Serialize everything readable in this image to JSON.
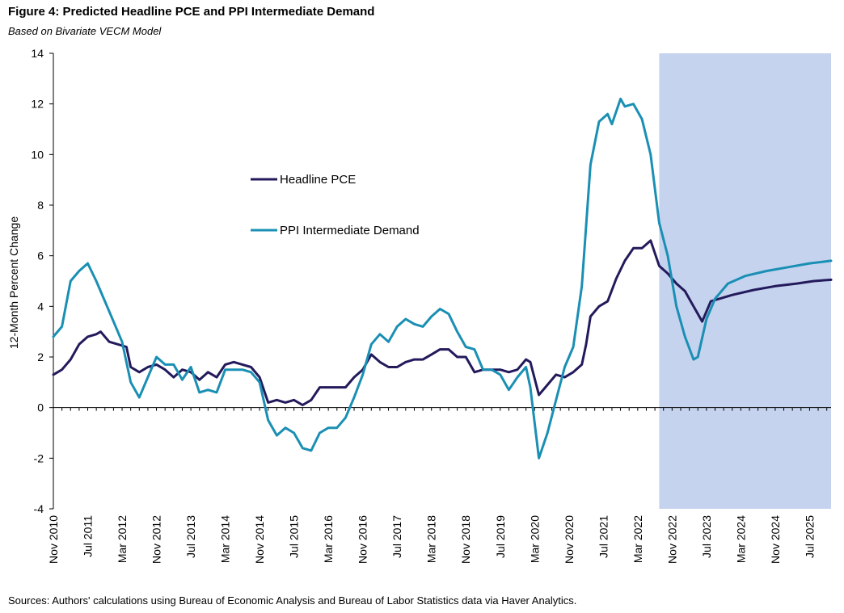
{
  "title": "Figure 4: Predicted Headline PCE and PPI Intermediate Demand",
  "subtitle": "Based on Bivariate VECM Model",
  "source": "Sources: Authors' calculations using Bureau of Economic Analysis and Bureau of Labor Statistics data via Haver Analytics.",
  "chart_data": {
    "type": "line",
    "ylabel": "12-Month Percent Change",
    "ylim": [
      -4,
      14
    ],
    "yticks": [
      -4,
      -2,
      0,
      2,
      4,
      6,
      8,
      10,
      12,
      14
    ],
    "xlim": [
      "2010-11",
      "2025-12"
    ],
    "xticks": [
      {
        "date": "2010-11",
        "label": "Nov 2010"
      },
      {
        "date": "2011-07",
        "label": "Jul 2011"
      },
      {
        "date": "2012-03",
        "label": "Mar 2012"
      },
      {
        "date": "2012-11",
        "label": "Nov 2012"
      },
      {
        "date": "2013-07",
        "label": "Jul 2013"
      },
      {
        "date": "2014-03",
        "label": "Mar 2014"
      },
      {
        "date": "2014-11",
        "label": "Nov 2014"
      },
      {
        "date": "2015-07",
        "label": "Jul 2015"
      },
      {
        "date": "2016-03",
        "label": "Mar 2016"
      },
      {
        "date": "2016-11",
        "label": "Nov 2016"
      },
      {
        "date": "2017-07",
        "label": "Jul 2017"
      },
      {
        "date": "2018-03",
        "label": "Mar 2018"
      },
      {
        "date": "2018-11",
        "label": "Nov 2018"
      },
      {
        "date": "2019-07",
        "label": "Jul 2019"
      },
      {
        "date": "2020-03",
        "label": "Mar 2020"
      },
      {
        "date": "2020-11",
        "label": "Nov 2020"
      },
      {
        "date": "2021-07",
        "label": "Jul 2021"
      },
      {
        "date": "2022-03",
        "label": "Mar 2022"
      },
      {
        "date": "2022-11",
        "label": "Nov 2022"
      },
      {
        "date": "2023-07",
        "label": "Jul 2023"
      },
      {
        "date": "2024-03",
        "label": "Mar 2024"
      },
      {
        "date": "2024-11",
        "label": "Nov 2024"
      },
      {
        "date": "2025-07",
        "label": "Jul 2025"
      }
    ],
    "forecast_shading": {
      "start": "2022-08",
      "end": "2025-12",
      "color": "#c5d3ee"
    },
    "grid": false,
    "legend_position": "inside-upper-left",
    "series": [
      {
        "name": "Headline PCE",
        "color": "#231a5c",
        "points": [
          [
            "2010-11",
            1.3
          ],
          [
            "2011-01",
            1.5
          ],
          [
            "2011-03",
            1.9
          ],
          [
            "2011-05",
            2.5
          ],
          [
            "2011-07",
            2.8
          ],
          [
            "2011-09",
            2.9
          ],
          [
            "2011-10",
            3.0
          ],
          [
            "2011-12",
            2.6
          ],
          [
            "2012-02",
            2.5
          ],
          [
            "2012-04",
            2.4
          ],
          [
            "2012-05",
            1.6
          ],
          [
            "2012-07",
            1.4
          ],
          [
            "2012-09",
            1.6
          ],
          [
            "2012-11",
            1.7
          ],
          [
            "2013-01",
            1.5
          ],
          [
            "2013-03",
            1.2
          ],
          [
            "2013-05",
            1.5
          ],
          [
            "2013-07",
            1.4
          ],
          [
            "2013-09",
            1.1
          ],
          [
            "2013-11",
            1.4
          ],
          [
            "2014-01",
            1.2
          ],
          [
            "2014-03",
            1.7
          ],
          [
            "2014-05",
            1.8
          ],
          [
            "2014-07",
            1.7
          ],
          [
            "2014-09",
            1.6
          ],
          [
            "2014-11",
            1.2
          ],
          [
            "2015-01",
            0.2
          ],
          [
            "2015-03",
            0.3
          ],
          [
            "2015-05",
            0.2
          ],
          [
            "2015-07",
            0.3
          ],
          [
            "2015-09",
            0.1
          ],
          [
            "2015-11",
            0.3
          ],
          [
            "2016-01",
            0.8
          ],
          [
            "2016-03",
            0.8
          ],
          [
            "2016-05",
            0.8
          ],
          [
            "2016-07",
            0.8
          ],
          [
            "2016-09",
            1.2
          ],
          [
            "2016-11",
            1.5
          ],
          [
            "2017-01",
            2.1
          ],
          [
            "2017-03",
            1.8
          ],
          [
            "2017-05",
            1.6
          ],
          [
            "2017-07",
            1.6
          ],
          [
            "2017-09",
            1.8
          ],
          [
            "2017-11",
            1.9
          ],
          [
            "2018-01",
            1.9
          ],
          [
            "2018-03",
            2.1
          ],
          [
            "2018-05",
            2.3
          ],
          [
            "2018-07",
            2.3
          ],
          [
            "2018-09",
            2.0
          ],
          [
            "2018-11",
            2.0
          ],
          [
            "2019-01",
            1.4
          ],
          [
            "2019-03",
            1.5
          ],
          [
            "2019-05",
            1.5
          ],
          [
            "2019-07",
            1.5
          ],
          [
            "2019-09",
            1.4
          ],
          [
            "2019-11",
            1.5
          ],
          [
            "2020-01",
            1.9
          ],
          [
            "2020-02",
            1.8
          ],
          [
            "2020-04",
            0.5
          ],
          [
            "2020-06",
            0.9
          ],
          [
            "2020-08",
            1.3
          ],
          [
            "2020-10",
            1.2
          ],
          [
            "2020-12",
            1.4
          ],
          [
            "2021-02",
            1.7
          ],
          [
            "2021-03",
            2.5
          ],
          [
            "2021-04",
            3.6
          ],
          [
            "2021-06",
            4.0
          ],
          [
            "2021-08",
            4.2
          ],
          [
            "2021-10",
            5.1
          ],
          [
            "2021-12",
            5.8
          ],
          [
            "2022-02",
            6.3
          ],
          [
            "2022-04",
            6.3
          ],
          [
            "2022-06",
            6.6
          ],
          [
            "2022-08",
            5.6
          ],
          [
            "2022-10",
            5.3
          ],
          [
            "2022-12",
            4.9
          ],
          [
            "2023-02",
            4.6
          ],
          [
            "2023-04",
            4.0
          ],
          [
            "2023-06",
            3.4
          ],
          [
            "2023-08",
            4.2
          ],
          [
            "2023-10",
            4.3
          ],
          [
            "2024-01",
            4.45
          ],
          [
            "2024-06",
            4.65
          ],
          [
            "2024-11",
            4.8
          ],
          [
            "2025-04",
            4.9
          ],
          [
            "2025-08",
            5.0
          ],
          [
            "2025-12",
            5.05
          ]
        ]
      },
      {
        "name": "PPI Intermediate Demand",
        "color": "#1a8fb4",
        "points": [
          [
            "2010-11",
            2.8
          ],
          [
            "2011-01",
            3.2
          ],
          [
            "2011-03",
            5.0
          ],
          [
            "2011-05",
            5.4
          ],
          [
            "2011-07",
            5.7
          ],
          [
            "2011-09",
            5.0
          ],
          [
            "2011-11",
            4.2
          ],
          [
            "2012-01",
            3.4
          ],
          [
            "2012-03",
            2.6
          ],
          [
            "2012-05",
            1.0
          ],
          [
            "2012-07",
            0.4
          ],
          [
            "2012-09",
            1.2
          ],
          [
            "2012-11",
            2.0
          ],
          [
            "2013-01",
            1.7
          ],
          [
            "2013-03",
            1.7
          ],
          [
            "2013-05",
            1.1
          ],
          [
            "2013-07",
            1.6
          ],
          [
            "2013-09",
            0.6
          ],
          [
            "2013-11",
            0.7
          ],
          [
            "2014-01",
            0.6
          ],
          [
            "2014-03",
            1.5
          ],
          [
            "2014-05",
            1.5
          ],
          [
            "2014-07",
            1.5
          ],
          [
            "2014-09",
            1.4
          ],
          [
            "2014-11",
            1.0
          ],
          [
            "2015-01",
            -0.5
          ],
          [
            "2015-03",
            -1.1
          ],
          [
            "2015-05",
            -0.8
          ],
          [
            "2015-07",
            -1.0
          ],
          [
            "2015-09",
            -1.6
          ],
          [
            "2015-11",
            -1.7
          ],
          [
            "2016-01",
            -1.0
          ],
          [
            "2016-03",
            -0.8
          ],
          [
            "2016-05",
            -0.8
          ],
          [
            "2016-07",
            -0.4
          ],
          [
            "2016-09",
            0.4
          ],
          [
            "2016-11",
            1.3
          ],
          [
            "2017-01",
            2.5
          ],
          [
            "2017-03",
            2.9
          ],
          [
            "2017-05",
            2.6
          ],
          [
            "2017-07",
            3.2
          ],
          [
            "2017-09",
            3.5
          ],
          [
            "2017-11",
            3.3
          ],
          [
            "2018-01",
            3.2
          ],
          [
            "2018-03",
            3.6
          ],
          [
            "2018-05",
            3.9
          ],
          [
            "2018-07",
            3.7
          ],
          [
            "2018-09",
            3.0
          ],
          [
            "2018-11",
            2.4
          ],
          [
            "2019-01",
            2.3
          ],
          [
            "2019-03",
            1.5
          ],
          [
            "2019-05",
            1.5
          ],
          [
            "2019-07",
            1.3
          ],
          [
            "2019-09",
            0.7
          ],
          [
            "2019-11",
            1.2
          ],
          [
            "2020-01",
            1.6
          ],
          [
            "2020-02",
            0.8
          ],
          [
            "2020-04",
            -2.0
          ],
          [
            "2020-06",
            -1.0
          ],
          [
            "2020-08",
            0.3
          ],
          [
            "2020-10",
            1.6
          ],
          [
            "2020-12",
            2.4
          ],
          [
            "2021-02",
            4.8
          ],
          [
            "2021-04",
            9.6
          ],
          [
            "2021-06",
            11.3
          ],
          [
            "2021-08",
            11.6
          ],
          [
            "2021-09",
            11.2
          ],
          [
            "2021-11",
            12.2
          ],
          [
            "2021-12",
            11.9
          ],
          [
            "2022-02",
            12.0
          ],
          [
            "2022-04",
            11.4
          ],
          [
            "2022-06",
            10.0
          ],
          [
            "2022-08",
            7.3
          ],
          [
            "2022-10",
            6.0
          ],
          [
            "2022-12",
            4.0
          ],
          [
            "2023-02",
            2.8
          ],
          [
            "2023-04",
            1.9
          ],
          [
            "2023-05",
            2.0
          ],
          [
            "2023-07",
            3.5
          ],
          [
            "2023-09",
            4.3
          ],
          [
            "2023-12",
            4.9
          ],
          [
            "2024-04",
            5.2
          ],
          [
            "2024-09",
            5.4
          ],
          [
            "2025-02",
            5.55
          ],
          [
            "2025-07",
            5.7
          ],
          [
            "2025-12",
            5.8
          ]
        ]
      }
    ]
  }
}
